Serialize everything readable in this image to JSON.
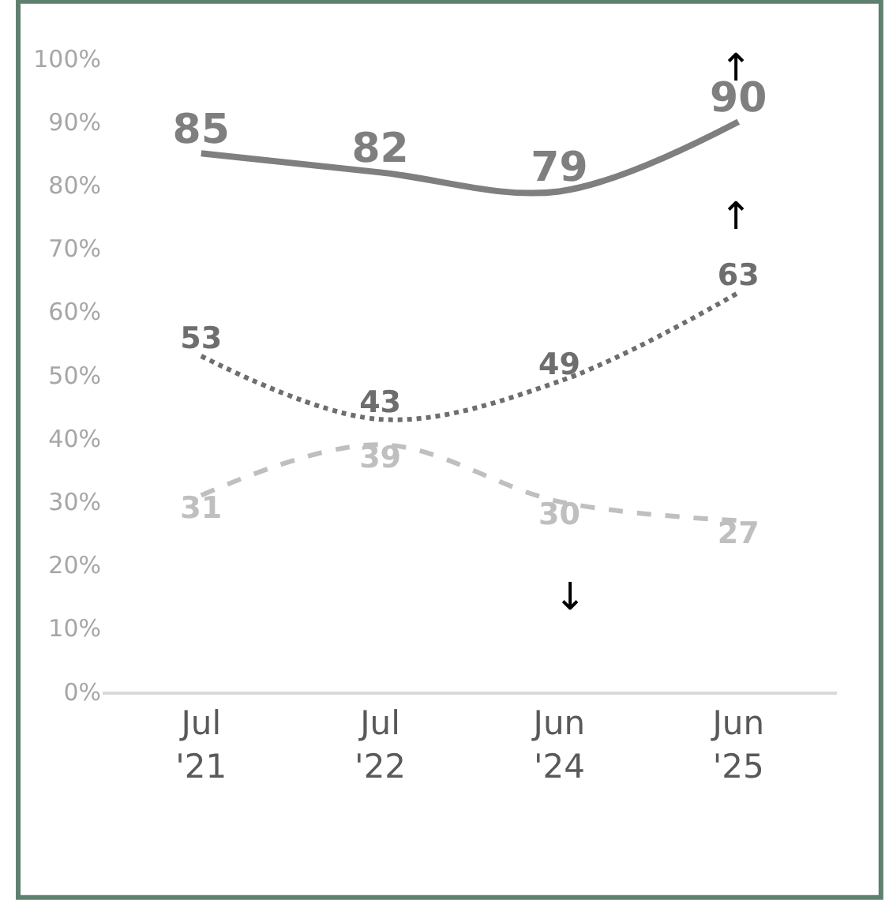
{
  "chart_data": {
    "type": "line",
    "categories": [
      "Jul '21",
      "Jul '22",
      "Jun '24",
      "Jun '25"
    ],
    "series": [
      {
        "color": "#7f7f7f",
        "values": [
          85,
          82,
          79,
          90
        ],
        "line_style": "solid"
      },
      {
        "color": "#6e6e6e",
        "values": [
          53,
          43,
          49,
          63
        ],
        "line_style": "dotted"
      },
      {
        "color": "#bfbfbf",
        "values": [
          31,
          39,
          30,
          27
        ],
        "line_style": "dashed"
      }
    ],
    "data_labels": true,
    "marker": "none",
    "ylim": [
      0,
      100
    ],
    "yticks": [
      {
        "value": 0,
        "label": "0%"
      },
      {
        "value": 10,
        "label": "10%"
      },
      {
        "value": 20,
        "label": "20%"
      },
      {
        "value": 30,
        "label": "30%"
      },
      {
        "value": 40,
        "label": "40%"
      },
      {
        "value": 50,
        "label": "50%"
      },
      {
        "value": 60,
        "label": "60%"
      },
      {
        "value": 70,
        "label": "70%"
      },
      {
        "value": 80,
        "label": "80%"
      },
      {
        "value": 90,
        "label": "90%"
      },
      {
        "value": 100,
        "label": "100%"
      }
    ],
    "annotations": [
      "↑",
      "↑",
      "↓"
    ]
  }
}
